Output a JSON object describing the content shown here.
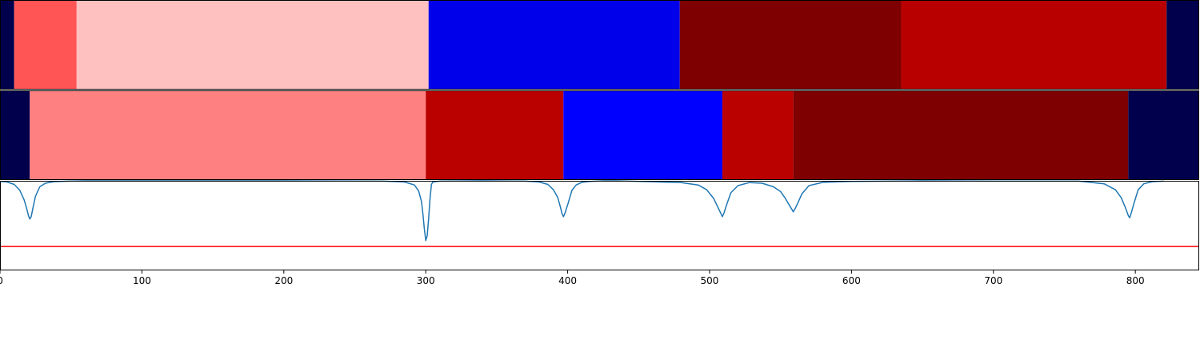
{
  "chart_data": [
    {
      "type": "bar",
      "orientation": "horizontal-segments",
      "segments": [
        {
          "x0": 0,
          "x1": 10,
          "color": "#00004c"
        },
        {
          "x0": 10,
          "x1": 54,
          "color": "#ff5555"
        },
        {
          "x0": 54,
          "x1": 302,
          "color": "#ffc0c0"
        },
        {
          "x0": 302,
          "x1": 479,
          "color": "#0000ea"
        },
        {
          "x0": 479,
          "x1": 635,
          "color": "#7e0000"
        },
        {
          "x0": 635,
          "x1": 822,
          "color": "#b80000"
        },
        {
          "x0": 822,
          "x1": 845,
          "color": "#00004c"
        }
      ]
    },
    {
      "type": "bar",
      "orientation": "horizontal-segments",
      "segments": [
        {
          "x0": 0,
          "x1": 21,
          "color": "#00004c"
        },
        {
          "x0": 21,
          "x1": 300,
          "color": "#ff8080"
        },
        {
          "x0": 300,
          "x1": 397,
          "color": "#bb0000"
        },
        {
          "x0": 397,
          "x1": 509,
          "color": "#0000ff"
        },
        {
          "x0": 509,
          "x1": 559,
          "color": "#bb0000"
        },
        {
          "x0": 559,
          "x1": 795,
          "color": "#7e0000"
        },
        {
          "x0": 795,
          "x1": 845,
          "color": "#00004c"
        }
      ]
    },
    {
      "type": "line",
      "xlim": [
        0,
        845
      ],
      "ylim": [
        -0.5,
        1.0
      ],
      "xticks": [
        0,
        100,
        200,
        300,
        400,
        500,
        600,
        700,
        800
      ],
      "series": [
        {
          "color": "#1f77b4",
          "x": [
            0,
            5,
            10,
            14,
            17,
            19,
            20,
            21,
            22,
            23,
            25,
            28,
            32,
            38,
            48,
            60,
            100,
            200,
            270,
            285,
            292,
            295,
            297,
            298,
            299,
            300,
            301,
            302,
            303,
            304,
            305,
            310,
            340,
            370,
            380,
            386,
            390,
            393,
            395,
            396,
            397,
            398,
            400,
            403,
            406,
            410,
            416,
            425,
            435,
            480,
            492,
            498,
            503,
            506,
            508,
            509,
            510,
            512,
            515,
            520,
            528,
            537,
            545,
            550,
            553,
            556,
            558,
            559,
            560,
            562,
            565,
            570,
            580,
            600,
            650,
            700,
            760,
            778,
            786,
            790,
            793,
            795,
            796,
            797,
            799,
            802,
            806,
            812,
            820
          ],
          "y": [
            0.99,
            0.98,
            0.94,
            0.84,
            0.68,
            0.52,
            0.42,
            0.36,
            0.4,
            0.52,
            0.74,
            0.9,
            0.96,
            0.985,
            0.995,
            1.0,
            1.0,
            1.0,
            0.995,
            0.98,
            0.93,
            0.83,
            0.65,
            0.45,
            0.2,
            0.0,
            0.08,
            0.35,
            0.7,
            0.94,
            0.98,
            0.995,
            1.0,
            0.995,
            0.98,
            0.94,
            0.85,
            0.72,
            0.55,
            0.45,
            0.4,
            0.45,
            0.6,
            0.84,
            0.93,
            0.975,
            0.99,
            1.0,
            1.0,
            0.97,
            0.93,
            0.85,
            0.7,
            0.55,
            0.45,
            0.4,
            0.45,
            0.6,
            0.8,
            0.92,
            0.97,
            0.96,
            0.9,
            0.82,
            0.72,
            0.6,
            0.52,
            0.48,
            0.52,
            0.62,
            0.78,
            0.92,
            0.975,
            0.99,
            1.0,
            0.995,
            0.995,
            0.95,
            0.85,
            0.72,
            0.55,
            0.42,
            0.38,
            0.45,
            0.62,
            0.85,
            0.95,
            0.985,
            0.995
          ]
        },
        {
          "color": "#ff0000",
          "x": [
            0,
            845
          ],
          "y": [
            -0.1,
            -0.1
          ]
        }
      ]
    }
  ]
}
